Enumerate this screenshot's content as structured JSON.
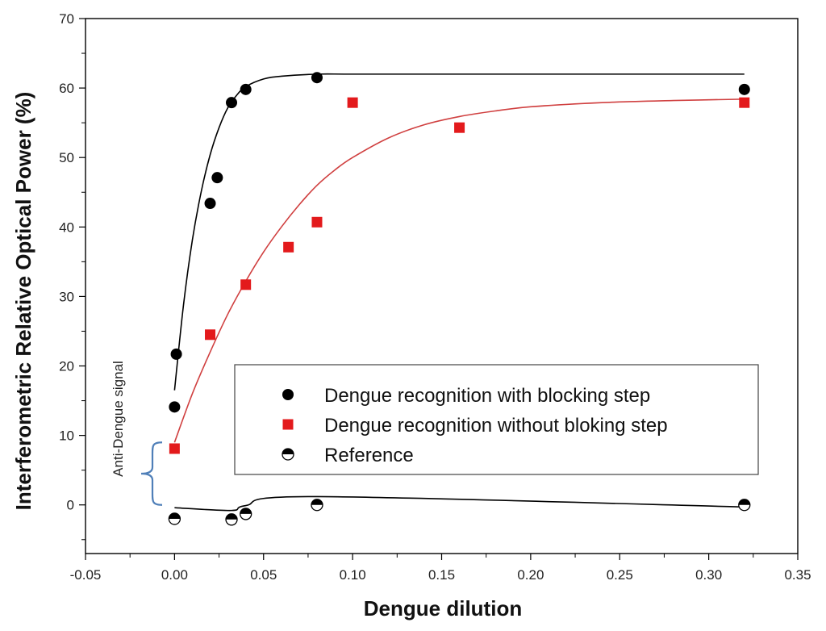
{
  "chart_data": {
    "type": "scatter",
    "title": "",
    "xlabel": "Dengue dilution",
    "ylabel": "Interferometric Relative Optical Power (%)",
    "xlim": [
      -0.05,
      0.35
    ],
    "ylim": [
      -7,
      70
    ],
    "xticks": [
      "-0.05",
      "0.00",
      "0.05",
      "0.10",
      "0.15",
      "0.20",
      "0.25",
      "0.30",
      "0.35"
    ],
    "yticks": [
      "0",
      "10",
      "20",
      "30",
      "40",
      "50",
      "60",
      "70"
    ],
    "grid": false,
    "legend_position": "lower-right",
    "series": [
      {
        "name": "Dengue recognition with blocking step",
        "marker": "circle",
        "color": "#000000",
        "points": [
          {
            "x": 0.0,
            "y": 14.1
          },
          {
            "x": 0.001,
            "y": 21.7
          },
          {
            "x": 0.02,
            "y": 43.4
          },
          {
            "x": 0.024,
            "y": 47.1
          },
          {
            "x": 0.032,
            "y": 57.9
          },
          {
            "x": 0.04,
            "y": 59.8
          },
          {
            "x": 0.08,
            "y": 61.5
          },
          {
            "x": 0.32,
            "y": 59.8
          }
        ],
        "fit": {
          "color": "#000000",
          "x": [
            0.0,
            0.005,
            0.01,
            0.015,
            0.02,
            0.025,
            0.03,
            0.035,
            0.04,
            0.05,
            0.06,
            0.08,
            0.1,
            0.15,
            0.2,
            0.25,
            0.32
          ],
          "y": [
            16.5,
            28.7,
            38.1,
            45.1,
            50.4,
            54.3,
            57.2,
            59.0,
            60.2,
            61.3,
            61.7,
            62.0,
            62.0,
            62.0,
            62.0,
            62.0,
            62.0
          ]
        }
      },
      {
        "name": "Dengue recognition without bloking step",
        "marker": "square",
        "color": "#e31a1c",
        "points": [
          {
            "x": 0.0,
            "y": 8.1
          },
          {
            "x": 0.02,
            "y": 24.5
          },
          {
            "x": 0.04,
            "y": 31.7
          },
          {
            "x": 0.064,
            "y": 37.1
          },
          {
            "x": 0.08,
            "y": 40.7
          },
          {
            "x": 0.1,
            "y": 57.9
          },
          {
            "x": 0.16,
            "y": 54.3
          },
          {
            "x": 0.32,
            "y": 57.9
          }
        ],
        "fit": {
          "color": "#d04040",
          "x": [
            0.0,
            0.01,
            0.02,
            0.03,
            0.04,
            0.05,
            0.06,
            0.07,
            0.08,
            0.09,
            0.1,
            0.12,
            0.14,
            0.16,
            0.18,
            0.2,
            0.24,
            0.28,
            0.32
          ],
          "y": [
            9.0,
            16.0,
            22.0,
            27.5,
            32.2,
            36.4,
            40.0,
            43.2,
            46.0,
            48.2,
            50.0,
            52.8,
            54.7,
            55.9,
            56.7,
            57.3,
            57.9,
            58.2,
            58.4
          ]
        }
      },
      {
        "name": "Reference",
        "marker": "half-circle",
        "color": "#000000",
        "points": [
          {
            "x": 0.0,
            "y": -2.0
          },
          {
            "x": 0.032,
            "y": -2.1
          },
          {
            "x": 0.04,
            "y": -1.3
          },
          {
            "x": 0.08,
            "y": 0.0
          },
          {
            "x": 0.32,
            "y": 0.0
          }
        ],
        "fit": {
          "color": "#000000",
          "x": [
            0.0,
            0.032,
            0.04,
            0.08,
            0.32
          ],
          "y": [
            -0.4,
            -0.8,
            -0.1,
            1.2,
            -0.3
          ]
        }
      }
    ],
    "annotations": [
      {
        "text": "Anti-Dengue signal",
        "bracket_from": 0.0,
        "bracket_to": 9.0
      }
    ]
  }
}
